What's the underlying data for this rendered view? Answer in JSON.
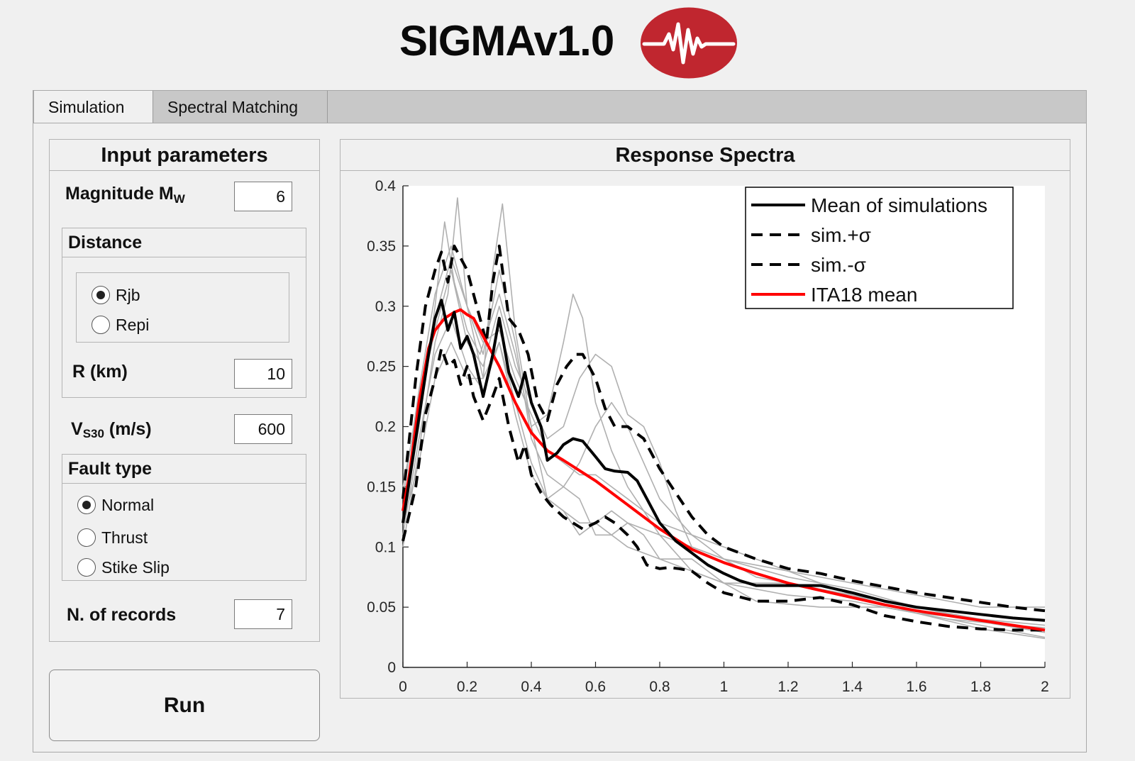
{
  "app": {
    "title": "SIGMAv1.0",
    "logo_color": "#c0262f"
  },
  "tabs": [
    {
      "label": "Simulation",
      "active": true
    },
    {
      "label": "Spectral Matching",
      "active": false
    }
  ],
  "input_panel": {
    "title": "Input parameters",
    "magnitude": {
      "label": "Magnitude M",
      "sub": "W",
      "value": "6"
    },
    "distance": {
      "title": "Distance",
      "options": [
        {
          "label": "Rjb",
          "selected": true
        },
        {
          "label": "Repi",
          "selected": false
        }
      ],
      "r_label": "R (km)",
      "r_value": "10"
    },
    "vs30": {
      "label_main": "V",
      "sub": "S30",
      "label_rest": " (m/s)",
      "value": "600"
    },
    "fault_type": {
      "title": "Fault type",
      "options": [
        {
          "label": "Normal",
          "selected": true
        },
        {
          "label": "Thrust",
          "selected": false
        },
        {
          "label": "Stike Slip",
          "selected": false
        }
      ]
    },
    "records": {
      "label": "N. of records",
      "value": "7"
    }
  },
  "run_button": {
    "label": "Run"
  },
  "plot_panel": {
    "title": "Response Spectra"
  },
  "chart_data": {
    "type": "line",
    "title": "Response Spectra",
    "xlabel": "",
    "ylabel": "",
    "xlim": [
      0,
      2
    ],
    "ylim": [
      0,
      0.4
    ],
    "xticks": [
      "0",
      "0.2",
      "0.4",
      "0.6",
      "0.8",
      "1",
      "1.2",
      "1.4",
      "1.6",
      "1.8",
      "2"
    ],
    "yticks": [
      "0",
      "0.05",
      "0.1",
      "0.15",
      "0.2",
      "0.25",
      "0.3",
      "0.35",
      "0.4"
    ],
    "legend_position": "top-right",
    "series": [
      {
        "name": "Mean of simulations",
        "color": "#000000",
        "style": "solid",
        "x": [
          0,
          0.04,
          0.08,
          0.1,
          0.12,
          0.14,
          0.16,
          0.18,
          0.2,
          0.22,
          0.25,
          0.28,
          0.3,
          0.33,
          0.36,
          0.38,
          0.4,
          0.43,
          0.45,
          0.48,
          0.5,
          0.53,
          0.56,
          0.6,
          0.63,
          0.66,
          0.7,
          0.73,
          0.76,
          0.8,
          0.85,
          0.9,
          0.95,
          1.0,
          1.05,
          1.1,
          1.2,
          1.3,
          1.4,
          1.5,
          1.6,
          1.7,
          1.8,
          1.9,
          2.0
        ],
        "y": [
          0.12,
          0.19,
          0.26,
          0.29,
          0.305,
          0.28,
          0.295,
          0.265,
          0.275,
          0.26,
          0.225,
          0.26,
          0.29,
          0.245,
          0.225,
          0.245,
          0.22,
          0.2,
          0.172,
          0.178,
          0.185,
          0.19,
          0.188,
          0.175,
          0.165,
          0.163,
          0.162,
          0.155,
          0.14,
          0.12,
          0.105,
          0.095,
          0.085,
          0.078,
          0.072,
          0.068,
          0.068,
          0.068,
          0.062,
          0.055,
          0.05,
          0.047,
          0.044,
          0.041,
          0.039
        ]
      },
      {
        "name": "sim.+σ",
        "color": "#000000",
        "style": "dashed",
        "x": [
          0,
          0.04,
          0.07,
          0.1,
          0.12,
          0.14,
          0.16,
          0.18,
          0.2,
          0.23,
          0.26,
          0.28,
          0.3,
          0.33,
          0.36,
          0.39,
          0.42,
          0.45,
          0.48,
          0.51,
          0.54,
          0.56,
          0.6,
          0.63,
          0.66,
          0.7,
          0.75,
          0.8,
          0.85,
          0.9,
          0.95,
          1.0,
          1.1,
          1.2,
          1.3,
          1.4,
          1.5,
          1.6,
          1.7,
          1.8,
          1.9,
          2.0
        ],
        "y": [
          0.14,
          0.24,
          0.3,
          0.33,
          0.345,
          0.32,
          0.35,
          0.34,
          0.33,
          0.3,
          0.27,
          0.32,
          0.35,
          0.29,
          0.28,
          0.26,
          0.22,
          0.205,
          0.235,
          0.25,
          0.26,
          0.26,
          0.24,
          0.215,
          0.2,
          0.2,
          0.19,
          0.165,
          0.145,
          0.125,
          0.11,
          0.1,
          0.09,
          0.082,
          0.078,
          0.072,
          0.067,
          0.062,
          0.058,
          0.054,
          0.05,
          0.047
        ]
      },
      {
        "name": "sim.-σ",
        "color": "#000000",
        "style": "dashed",
        "x": [
          0,
          0.04,
          0.07,
          0.1,
          0.12,
          0.14,
          0.16,
          0.18,
          0.2,
          0.22,
          0.25,
          0.28,
          0.3,
          0.33,
          0.36,
          0.38,
          0.4,
          0.43,
          0.46,
          0.5,
          0.53,
          0.56,
          0.6,
          0.63,
          0.66,
          0.7,
          0.73,
          0.76,
          0.8,
          0.83,
          0.86,
          0.9,
          0.95,
          1.0,
          1.1,
          1.2,
          1.3,
          1.4,
          1.5,
          1.6,
          1.7,
          1.8,
          1.9,
          2.0
        ],
        "y": [
          0.105,
          0.15,
          0.21,
          0.24,
          0.265,
          0.25,
          0.255,
          0.235,
          0.25,
          0.225,
          0.205,
          0.225,
          0.24,
          0.2,
          0.17,
          0.185,
          0.16,
          0.145,
          0.135,
          0.125,
          0.12,
          0.115,
          0.12,
          0.125,
          0.12,
          0.11,
          0.1,
          0.085,
          0.082,
          0.083,
          0.082,
          0.08,
          0.07,
          0.062,
          0.055,
          0.055,
          0.058,
          0.052,
          0.043,
          0.038,
          0.034,
          0.032,
          0.031,
          0.031
        ]
      },
      {
        "name": "ITA18 mean",
        "color": "#ff0000",
        "style": "solid",
        "x": [
          0,
          0.02,
          0.05,
          0.08,
          0.1,
          0.13,
          0.16,
          0.18,
          0.2,
          0.22,
          0.25,
          0.3,
          0.35,
          0.4,
          0.45,
          0.5,
          0.6,
          0.7,
          0.8,
          0.9,
          1.0,
          1.1,
          1.2,
          1.3,
          1.4,
          1.5,
          1.6,
          1.7,
          1.8,
          1.9,
          2.0
        ],
        "y": [
          0.13,
          0.16,
          0.22,
          0.265,
          0.28,
          0.29,
          0.295,
          0.297,
          0.293,
          0.29,
          0.275,
          0.25,
          0.22,
          0.195,
          0.18,
          0.172,
          0.155,
          0.135,
          0.115,
          0.098,
          0.087,
          0.078,
          0.07,
          0.064,
          0.058,
          0.052,
          0.047,
          0.043,
          0.039,
          0.035,
          0.031
        ]
      }
    ],
    "individual_records": [
      {
        "color": "#b0b0b0",
        "x": [
          0,
          0.05,
          0.1,
          0.13,
          0.16,
          0.2,
          0.24,
          0.3,
          0.35,
          0.4,
          0.45,
          0.5,
          0.53,
          0.56,
          0.6,
          0.65,
          0.7,
          0.8,
          0.9,
          1.0,
          1.2,
          1.4,
          1.6,
          1.8,
          2.0
        ],
        "y": [
          0.12,
          0.2,
          0.3,
          0.37,
          0.32,
          0.28,
          0.26,
          0.31,
          0.26,
          0.2,
          0.21,
          0.27,
          0.31,
          0.29,
          0.22,
          0.18,
          0.15,
          0.11,
          0.08,
          0.07,
          0.07,
          0.06,
          0.05,
          0.04,
          0.035
        ]
      },
      {
        "color": "#b0b0b0",
        "x": [
          0,
          0.05,
          0.1,
          0.14,
          0.17,
          0.2,
          0.25,
          0.28,
          0.31,
          0.35,
          0.4,
          0.45,
          0.5,
          0.55,
          0.6,
          0.65,
          0.7,
          0.8,
          0.9,
          1.0,
          1.2,
          1.4,
          1.6,
          1.8,
          2.0
        ],
        "y": [
          0.1,
          0.18,
          0.27,
          0.31,
          0.39,
          0.3,
          0.24,
          0.33,
          0.385,
          0.28,
          0.2,
          0.14,
          0.13,
          0.12,
          0.12,
          0.11,
          0.1,
          0.09,
          0.08,
          0.07,
          0.06,
          0.055,
          0.045,
          0.04,
          0.03
        ]
      },
      {
        "color": "#b0b0b0",
        "x": [
          0,
          0.05,
          0.1,
          0.15,
          0.2,
          0.25,
          0.3,
          0.35,
          0.4,
          0.45,
          0.5,
          0.55,
          0.6,
          0.65,
          0.7,
          0.75,
          0.8,
          0.85,
          0.9,
          1.0,
          1.2,
          1.4,
          1.6,
          1.8,
          2.0
        ],
        "y": [
          0.15,
          0.22,
          0.28,
          0.33,
          0.27,
          0.25,
          0.3,
          0.25,
          0.22,
          0.19,
          0.2,
          0.24,
          0.26,
          0.25,
          0.21,
          0.2,
          0.17,
          0.13,
          0.1,
          0.09,
          0.08,
          0.07,
          0.06,
          0.05,
          0.05
        ]
      },
      {
        "color": "#b0b0b0",
        "x": [
          0,
          0.05,
          0.1,
          0.15,
          0.2,
          0.25,
          0.3,
          0.35,
          0.4,
          0.45,
          0.5,
          0.55,
          0.6,
          0.65,
          0.7,
          0.75,
          0.8,
          0.9,
          1.0,
          1.1,
          1.3,
          1.5,
          1.7,
          1.9,
          2.0
        ],
        "y": [
          0.11,
          0.19,
          0.26,
          0.29,
          0.25,
          0.23,
          0.27,
          0.22,
          0.17,
          0.14,
          0.13,
          0.11,
          0.12,
          0.13,
          0.12,
          0.11,
          0.09,
          0.09,
          0.07,
          0.055,
          0.05,
          0.05,
          0.04,
          0.035,
          0.033
        ]
      },
      {
        "color": "#b0b0b0",
        "x": [
          0,
          0.05,
          0.1,
          0.15,
          0.2,
          0.25,
          0.3,
          0.35,
          0.4,
          0.45,
          0.5,
          0.55,
          0.6,
          0.65,
          0.7,
          0.75,
          0.8,
          0.9,
          1.0,
          1.2,
          1.4,
          1.6,
          1.8,
          2.0
        ],
        "y": [
          0.13,
          0.21,
          0.29,
          0.34,
          0.3,
          0.26,
          0.33,
          0.27,
          0.19,
          0.16,
          0.15,
          0.17,
          0.2,
          0.22,
          0.2,
          0.17,
          0.14,
          0.11,
          0.09,
          0.075,
          0.065,
          0.05,
          0.038,
          0.029
        ]
      },
      {
        "color": "#b0b0b0",
        "x": [
          0,
          0.05,
          0.1,
          0.15,
          0.2,
          0.25,
          0.3,
          0.35,
          0.4,
          0.45,
          0.5,
          0.55,
          0.6,
          0.65,
          0.7,
          0.8,
          0.9,
          1.0,
          1.1,
          1.2,
          1.4,
          1.6,
          1.8,
          2.0
        ],
        "y": [
          0.12,
          0.17,
          0.24,
          0.27,
          0.24,
          0.24,
          0.27,
          0.21,
          0.16,
          0.14,
          0.15,
          0.14,
          0.11,
          0.11,
          0.12,
          0.11,
          0.1,
          0.09,
          0.075,
          0.07,
          0.06,
          0.045,
          0.035,
          0.025
        ]
      },
      {
        "color": "#b0b0b0",
        "x": [
          0,
          0.05,
          0.1,
          0.15,
          0.2,
          0.25,
          0.3,
          0.35,
          0.4,
          0.45,
          0.5,
          0.55,
          0.6,
          0.65,
          0.7,
          0.8,
          0.9,
          1.0,
          1.2,
          1.4,
          1.6,
          1.8,
          2.0
        ],
        "y": [
          0.14,
          0.23,
          0.31,
          0.35,
          0.3,
          0.27,
          0.28,
          0.24,
          0.21,
          0.18,
          0.17,
          0.16,
          0.16,
          0.15,
          0.14,
          0.12,
          0.11,
          0.1,
          0.08,
          0.06,
          0.045,
          0.032,
          0.024
        ]
      }
    ]
  }
}
